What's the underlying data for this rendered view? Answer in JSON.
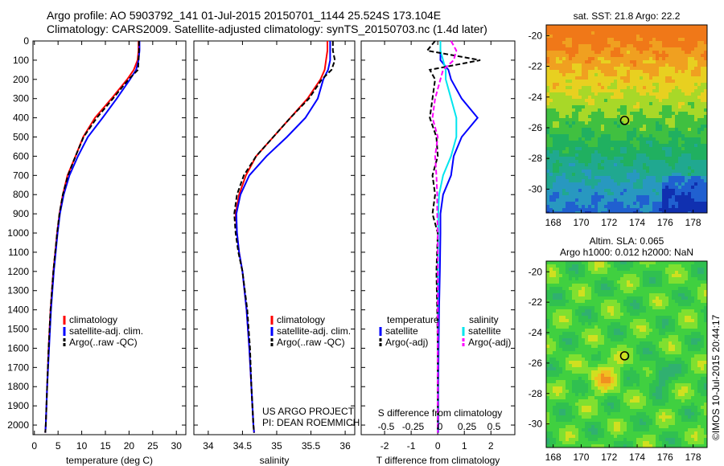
{
  "title_line1": "Argo profile: AO 5903792_141 01-Jul-2015 20150701_1144 25.524S 173.104E",
  "title_line2": "Climatology: CARS2009. Satellite-adjusted climatology: synTS_20150703.nc (1.4d later)",
  "credit_line1": "US ARGO PROJECT",
  "credit_line2": "PI: DEAN ROEMMICH",
  "watermark": "©IMOS 10-Jul-2015 20:44:17",
  "colors": {
    "climatology": "#ff0000",
    "satellite": "#0000ff",
    "argo": "#000000",
    "sat_s": "#00e5ee",
    "argo_s": "#ff00ff"
  },
  "chart_data": [
    {
      "type": "line",
      "name": "temperature",
      "xlabel": "temperature (deg C)",
      "xlim": [
        -0.3,
        32
      ],
      "ylim": [
        2050,
        0
      ],
      "xticks": [
        0,
        5,
        10,
        15,
        20,
        25,
        30
      ],
      "yticks": [
        0,
        100,
        200,
        300,
        400,
        500,
        600,
        700,
        800,
        900,
        1000,
        1100,
        1200,
        1300,
        1400,
        1500,
        1600,
        1700,
        1800,
        1900,
        2000
      ],
      "legend": [
        "climatology",
        "satellite-adj. clim.",
        "Argo(..raw -QC)"
      ],
      "depth": [
        0,
        50,
        100,
        150,
        200,
        300,
        400,
        500,
        600,
        700,
        800,
        900,
        1000,
        1200,
        1400,
        1600,
        1800,
        2000,
        2040
      ],
      "series": [
        {
          "name": "climatology",
          "values": [
            22,
            22,
            21.8,
            21,
            19.6,
            16.3,
            12.8,
            10.3,
            8.7,
            7,
            6,
            5.3,
            4.8,
            4,
            3.4,
            3,
            2.7,
            2.4,
            2.3
          ]
        },
        {
          "name": "satellite-adj. clim.",
          "values": [
            22.2,
            22.2,
            22,
            21.5,
            20.2,
            17.4,
            14.4,
            11.3,
            9.2,
            7.4,
            6.2,
            5.4,
            4.9,
            4.1,
            3.5,
            3.1,
            2.7,
            2.4,
            2.3
          ]
        },
        {
          "name": "Argo(..raw -QC)",
          "values": [
            22.1,
            22.1,
            22,
            21.9,
            19.9,
            16.6,
            13.2,
            10.4,
            8.7,
            7.1,
            6,
            5.3,
            4.8,
            4,
            3.4,
            3,
            2.7,
            2.4,
            2.3
          ]
        }
      ]
    },
    {
      "type": "line",
      "name": "salinity",
      "xlabel": "salinity",
      "xlim": [
        33.79,
        36.14
      ],
      "ylim": [
        2050,
        0
      ],
      "xticks": [
        34,
        34.5,
        35,
        35.5,
        36
      ],
      "legend": [
        "climatology",
        "satellite-adj. clim.",
        "Argo(..raw -QC)"
      ],
      "depth": [
        0,
        50,
        100,
        150,
        200,
        300,
        400,
        500,
        600,
        700,
        800,
        900,
        1000,
        1100,
        1200,
        1400,
        1600,
        1800,
        2000,
        2040
      ],
      "series": [
        {
          "name": "climatology",
          "values": [
            35.74,
            35.74,
            35.72,
            35.7,
            35.64,
            35.45,
            35.2,
            34.95,
            34.7,
            34.55,
            34.45,
            34.4,
            34.42,
            34.45,
            34.5,
            34.56,
            34.6,
            34.63,
            34.66,
            34.67
          ]
        },
        {
          "name": "satellite-adj. clim.",
          "values": [
            35.78,
            35.78,
            35.78,
            35.75,
            35.68,
            35.6,
            35.42,
            35.15,
            34.85,
            34.6,
            34.47,
            34.41,
            34.42,
            34.45,
            34.5,
            34.56,
            34.6,
            34.63,
            34.66,
            34.67
          ]
        },
        {
          "name": "Argo(..raw -QC)",
          "values": [
            35.82,
            35.82,
            35.85,
            35.8,
            35.66,
            35.47,
            35.2,
            34.95,
            34.7,
            34.52,
            34.42,
            34.38,
            34.4,
            34.44,
            34.5,
            34.57,
            34.61,
            34.63,
            34.66,
            34.67
          ]
        }
      ]
    },
    {
      "type": "line",
      "name": "difference",
      "xlabel": "T difference from climatology",
      "xlabel_top": "S difference from climatology",
      "xlim": [
        -2.88,
        2.9
      ],
      "xticks": [
        -2,
        -1,
        0,
        1,
        2
      ],
      "xticks_top": [
        -0.5,
        -0.25,
        0,
        0.25,
        0.5
      ],
      "ylim": [
        2050,
        0
      ],
      "legend_title_t": "temperature",
      "legend_title_s": "salinity",
      "legend_t": [
        "satellite",
        "Argo(-adj)"
      ],
      "legend_s": [
        "satellite",
        "Argo(-adj)"
      ],
      "depth": [
        0,
        50,
        100,
        150,
        200,
        300,
        400,
        500,
        600,
        700,
        800,
        900,
        1000,
        1200,
        1400,
        1600,
        1800,
        2000,
        2040
      ],
      "series": [
        {
          "name": "T satellite",
          "values": [
            0.1,
            0.1,
            0.1,
            0.4,
            0.5,
            0.9,
            1.5,
            0.9,
            0.6,
            0.5,
            0.2,
            0.1,
            0.1,
            0.08,
            0.05,
            0.03,
            0.02,
            0.02,
            0.02
          ]
        },
        {
          "name": "S satellite (scaled to T axis)",
          "values": [
            0.1,
            0.1,
            0.2,
            0.3,
            0.3,
            0.5,
            0.7,
            0.7,
            0.5,
            0.2,
            0.05,
            0.02,
            0.02,
            0.01,
            0,
            0,
            0,
            0,
            0
          ]
        },
        {
          "name": "T Argo(-adj)",
          "values": [
            -0.1,
            -0.4,
            1.6,
            -0.3,
            -0.1,
            -0.2,
            -0.3,
            -0.05,
            0,
            -0.2,
            -0.1,
            -0.2,
            0,
            -0.05,
            -0.02,
            0,
            0,
            0,
            0
          ]
        },
        {
          "name": "S Argo(-adj) (scaled to T axis)",
          "values": [
            0.5,
            0.7,
            0.6,
            0.2,
            0.1,
            -0.1,
            -0.2,
            0,
            -0.1,
            -0.05,
            -0.02,
            -0.02,
            0,
            0,
            0,
            0,
            0,
            0,
            0
          ]
        }
      ]
    },
    {
      "type": "heatmap",
      "name": "sst-map",
      "title": "sat. SST: 21.8 Argo: 22.2",
      "xlim": [
        167.5,
        179
      ],
      "ylim": [
        -31.55,
        -19.3
      ],
      "xticks": [
        168,
        170,
        172,
        174,
        176,
        178
      ],
      "yticks": [
        -20,
        -22,
        -24,
        -26,
        -28,
        -30
      ],
      "marker": {
        "lon": 173.104,
        "lat": -25.524
      }
    },
    {
      "type": "heatmap",
      "name": "sla-map",
      "title": "Altim. SLA: 0.065",
      "subtitle": "Argo h1000: 0.012 h2000: NaN",
      "xlim": [
        167.5,
        179
      ],
      "ylim": [
        -31.55,
        -19.3
      ],
      "xticks": [
        168,
        170,
        172,
        174,
        176,
        178
      ],
      "yticks": [
        -20,
        -22,
        -24,
        -26,
        -28,
        -30
      ],
      "marker": {
        "lon": 173.104,
        "lat": -25.524
      }
    }
  ]
}
